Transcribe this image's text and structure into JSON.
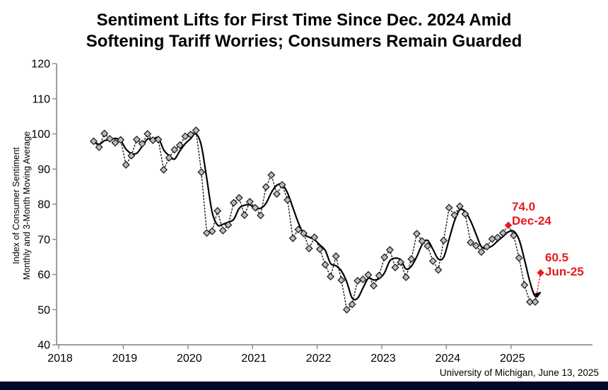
{
  "title": {
    "line1": "Sentiment Lifts for First Time Since Dec. 2024 Amid",
    "line2": "Softening Tariff Worries; Consumers Remain Guarded"
  },
  "source_note": "University of Michigan, June 13, 2025",
  "bottom_bar_color": "#000829",
  "chart_data": {
    "type": "line",
    "title": "Sentiment Lifts for First Time Since Dec. 2024 Amid Softening Tariff Worries; Consumers Remain Guarded",
    "ylabel_line1": "Index of Consumer Sentiment",
    "ylabel_line2": "Monthly and 3-Month Moving Average",
    "xlabel": "",
    "ylim": [
      40,
      120
    ],
    "y_ticks": [
      40,
      50,
      60,
      70,
      80,
      90,
      100,
      110,
      120
    ],
    "x_ticks": [
      2018,
      2019,
      2020,
      2021,
      2022,
      2023,
      2024,
      2025
    ],
    "grid": false,
    "legend": "none",
    "series": [
      {
        "name": "Monthly",
        "style": "dotted line with diamond markers",
        "months": [
          "Jul-18",
          "Aug-18",
          "Sep-18",
          "Oct-18",
          "Nov-18",
          "Dec-18",
          "Jan-19",
          "Feb-19",
          "Mar-19",
          "Apr-19",
          "May-19",
          "Jun-19",
          "Jul-19",
          "Aug-19",
          "Sep-19",
          "Oct-19",
          "Nov-19",
          "Dec-19",
          "Jan-20",
          "Feb-20",
          "Mar-20",
          "Apr-20",
          "May-20",
          "Jun-20",
          "Jul-20",
          "Aug-20",
          "Sep-20",
          "Oct-20",
          "Nov-20",
          "Dec-20",
          "Jan-21",
          "Feb-21",
          "Mar-21",
          "Apr-21",
          "May-21",
          "Jun-21",
          "Jul-21",
          "Aug-21",
          "Sep-21",
          "Oct-21",
          "Nov-21",
          "Dec-21",
          "Jan-22",
          "Feb-22",
          "Mar-22",
          "Apr-22",
          "May-22",
          "Jun-22",
          "Jul-22",
          "Aug-22",
          "Sep-22",
          "Oct-22",
          "Nov-22",
          "Dec-22",
          "Jan-23",
          "Feb-23",
          "Mar-23",
          "Apr-23",
          "May-23",
          "Jun-23",
          "Jul-23",
          "Aug-23",
          "Sep-23",
          "Oct-23",
          "Nov-23",
          "Dec-23",
          "Jan-24",
          "Feb-24",
          "Mar-24",
          "Apr-24",
          "May-24",
          "Jun-24",
          "Jul-24",
          "Aug-24",
          "Sep-24",
          "Oct-24",
          "Nov-24",
          "Dec-24",
          "Jan-25",
          "Feb-25",
          "Mar-25",
          "Apr-25",
          "May-25",
          "Jun-25"
        ],
        "values": [
          97.9,
          96.2,
          100.1,
          98.6,
          97.5,
          98.3,
          91.2,
          93.8,
          98.4,
          97.2,
          100.0,
          98.2,
          98.4,
          89.8,
          93.2,
          95.5,
          96.8,
          99.3,
          99.8,
          101.0,
          89.1,
          71.8,
          72.3,
          78.1,
          72.5,
          74.1,
          80.4,
          81.8,
          76.9,
          80.7,
          79.0,
          76.8,
          84.9,
          88.3,
          82.9,
          85.5,
          81.2,
          70.3,
          72.8,
          71.7,
          67.4,
          70.6,
          67.2,
          62.8,
          59.4,
          65.2,
          58.4,
          50.0,
          51.5,
          58.2,
          58.6,
          59.9,
          56.8,
          59.7,
          64.9,
          67.0,
          62.0,
          63.5,
          59.2,
          64.4,
          71.6,
          69.5,
          68.1,
          63.8,
          61.3,
          69.7,
          79.0,
          76.9,
          79.4,
          77.2,
          69.1,
          68.2,
          66.4,
          67.9,
          70.1,
          70.5,
          71.8,
          74.0,
          71.1,
          64.7,
          57.0,
          52.2,
          52.2,
          60.5
        ]
      },
      {
        "name": "3-Month Moving Average",
        "style": "solid line, ends with small arrowhead",
        "derived": "3-month moving average of Monthly series",
        "window": 3
      }
    ],
    "highlight_points": [
      {
        "month": "Dec-24",
        "value": 74.0,
        "label_value": "74.0",
        "label_month": "Dec-24"
      },
      {
        "month": "Jun-25",
        "value": 60.5,
        "label_value": "60.5",
        "label_month": "Jun-25"
      }
    ],
    "colors": {
      "monthly_line": "#1a1a1a",
      "marker_fill": "#b9bdc1",
      "marker_stroke": "#141414",
      "ma_line": "#000000",
      "highlight": "#e8191d",
      "axis": "#7f7f7f",
      "text": "#000000"
    }
  }
}
